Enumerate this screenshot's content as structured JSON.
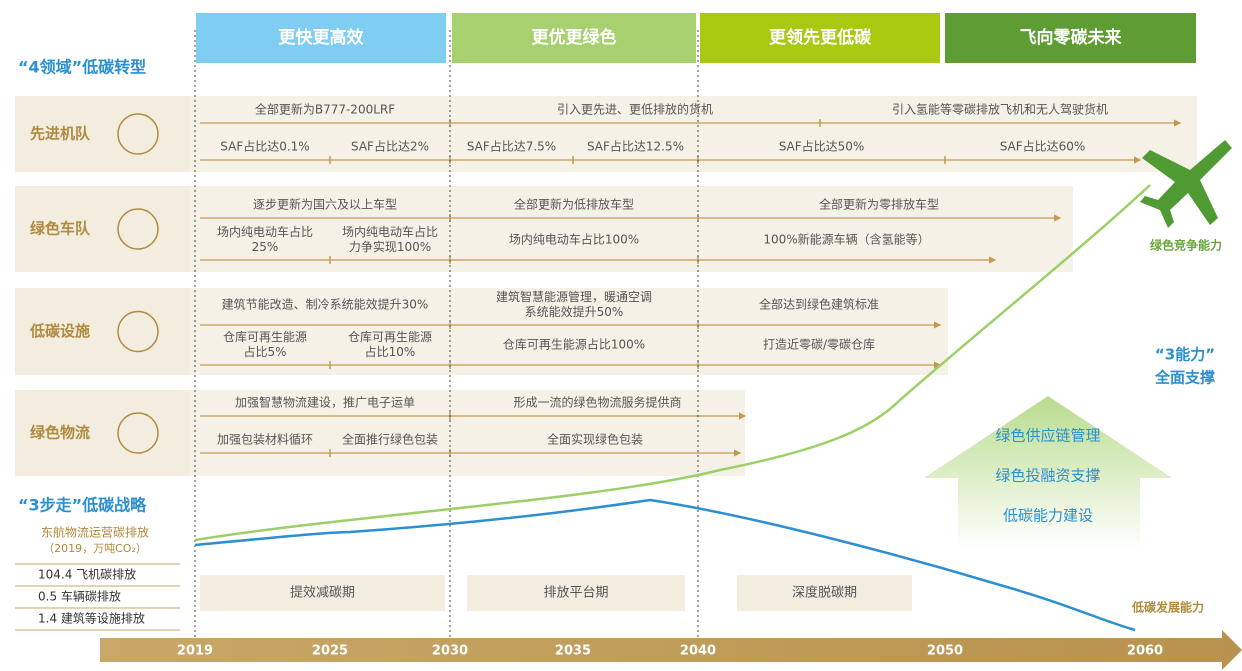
{
  "header_bands": [
    "更快更高效",
    "更优更绿色",
    "更领先更低碳",
    "飞向零碳未来"
  ],
  "section_four_domains": "“4领域”低碳转型",
  "section_three_steps": "“3步走”低碳战略",
  "section_three_capabilities": [
    "“3能力”",
    "全面支撑"
  ],
  "rows": [
    {
      "label": "先进机队",
      "tracks": [
        [
          [
            "全部更新为B777-200LRF"
          ],
          [
            "引入更先进、更低排放的货机"
          ],
          [
            "引入氢能等零碳排放飞机和无人驾驶货机"
          ]
        ],
        [
          [
            "SAF占比达0.1%"
          ],
          [
            "SAF占比达2%"
          ],
          [
            "SAF占比达7.5%"
          ],
          [
            "SAF占比达12.5%"
          ],
          [
            "SAF占比达50%"
          ],
          [
            "SAF占比达60%"
          ]
        ]
      ]
    },
    {
      "label": "绿色车队",
      "tracks": [
        [
          [
            "逐步更新为国六及以上车型"
          ],
          [
            "全部更新为低排放车型"
          ],
          [
            "全部更新为零排放车型"
          ]
        ],
        [
          [
            "场内纯电动车占比",
            "25%"
          ],
          [
            "场内纯电动车占比",
            "力争实现100%"
          ],
          [
            "场内纯电动车占比100%"
          ],
          [
            "100%新能源车辆（含氢能等）"
          ]
        ]
      ]
    },
    {
      "label": "低碳设施",
      "tracks": [
        [
          [
            "建筑节能改造、制冷系统能效提升30%"
          ],
          [
            "建筑智慧能源管理，暖通空调",
            "系统能效提升50%"
          ],
          [
            "全部达到绿色建筑标准"
          ]
        ],
        [
          [
            "仓库可再生能源",
            "占比5%"
          ],
          [
            "仓库可再生能源",
            "占比10%"
          ],
          [
            "仓库可再生能源占比100%"
          ],
          [
            "打造近零碳/零碳仓库"
          ]
        ]
      ]
    },
    {
      "label": "绿色物流",
      "tracks": [
        [
          [
            "加强智慧物流建设，推广电子运单"
          ],
          [
            "形成一流的绿色物流服务提供商"
          ]
        ],
        [
          [
            "加强包装材料循环"
          ],
          [
            "全面推行绿色包装"
          ],
          [
            "全面实现绿色包装"
          ]
        ]
      ]
    }
  ],
  "emissions": {
    "title": "东航物流运营碳排放",
    "subtitle": "（2019，万吨CO₂）",
    "items": [
      "104.4 飞机碳排放",
      "0.5 车辆碳排放",
      "1.4 建筑等设施排放"
    ]
  },
  "phases": [
    "提效减碳期",
    "排放平台期",
    "深度脱碳期"
  ],
  "capabilities": [
    "绿色供应链管理",
    "绿色投融资支撑",
    "低碳能力建设"
  ],
  "curve_labels": {
    "green": "绿色竞争能力",
    "blue": "低碳发展能力"
  },
  "years": [
    "2019",
    "2025",
    "2030",
    "2035",
    "2040",
    "2050",
    "2060"
  ]
}
